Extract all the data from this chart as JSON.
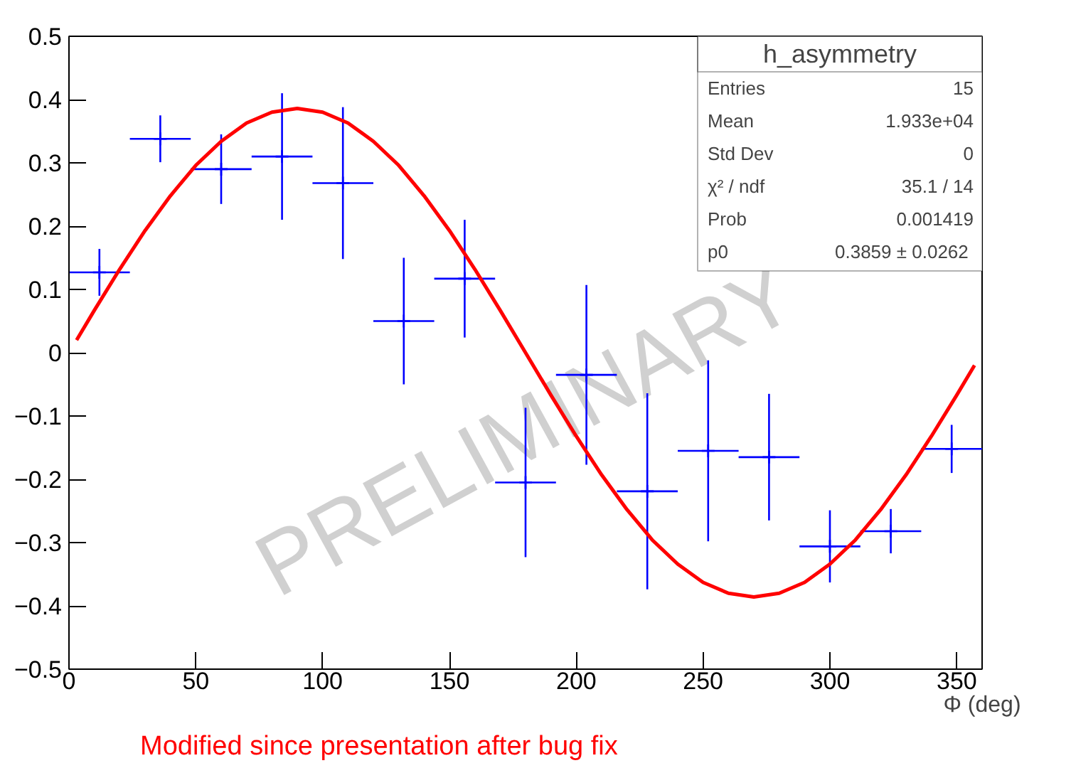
{
  "chart_data": {
    "type": "scatter",
    "xlabel": "Φ (deg)",
    "xlim": [
      0,
      360
    ],
    "ylim": [
      -0.5,
      0.5
    ],
    "xticks": [
      0,
      50,
      100,
      150,
      200,
      250,
      300,
      350
    ],
    "yticks": [
      -0.5,
      -0.4,
      -0.3,
      -0.2,
      -0.1,
      0,
      0.1,
      0.2,
      0.3,
      0.4,
      0.5
    ],
    "grid": false,
    "marker": "cross",
    "series": [
      {
        "color": "#0000ff",
        "x": [
          12,
          36,
          60,
          84,
          108,
          132,
          156,
          180,
          204,
          228,
          252,
          276,
          300,
          324,
          348
        ],
        "values": [
          0.127,
          0.338,
          0.29,
          0.31,
          0.268,
          0.05,
          0.117,
          -0.205,
          -0.035,
          -0.219,
          -0.155,
          -0.165,
          -0.306,
          -0.282,
          -0.152
        ],
        "errors": [
          0.037,
          0.037,
          0.055,
          0.1,
          0.12,
          0.1,
          0.093,
          0.118,
          0.142,
          0.155,
          0.143,
          0.1,
          0.057,
          0.035,
          0.038
        ],
        "xerrors": [
          12,
          12,
          12,
          12,
          12,
          12,
          12,
          12,
          12,
          12,
          12,
          12,
          12,
          12,
          12
        ]
      },
      {
        "type": "line",
        "marker": "none",
        "color": "#ff0000",
        "x": [
          3,
          10,
          20,
          30,
          40,
          50,
          60,
          70,
          80,
          90,
          100,
          110,
          120,
          130,
          140,
          150,
          160,
          170,
          180,
          190,
          200,
          210,
          220,
          230,
          240,
          250,
          260,
          270,
          280,
          290,
          300,
          310,
          320,
          330,
          340,
          350,
          357
        ],
        "values": [
          0.02,
          0.067,
          0.132,
          0.193,
          0.248,
          0.296,
          0.334,
          0.363,
          0.38,
          0.386,
          0.38,
          0.363,
          0.334,
          0.296,
          0.248,
          0.193,
          0.132,
          0.067,
          0.0,
          -0.067,
          -0.132,
          -0.193,
          -0.248,
          -0.296,
          -0.334,
          -0.363,
          -0.38,
          -0.386,
          -0.38,
          -0.363,
          -0.334,
          -0.296,
          -0.248,
          -0.193,
          -0.132,
          -0.067,
          -0.02
        ]
      }
    ],
    "annotations": [
      "h_asymmetry",
      "Entries",
      "15",
      "Mean",
      "1.933e+04",
      "Std Dev",
      "0",
      "χ² / ndf",
      "35.1 / 14",
      "Prob",
      "0.001419",
      "p0",
      "0.3859  ± 0.0262",
      "PRELIMINARY",
      "Modified since presentation after bug fix"
    ]
  }
}
